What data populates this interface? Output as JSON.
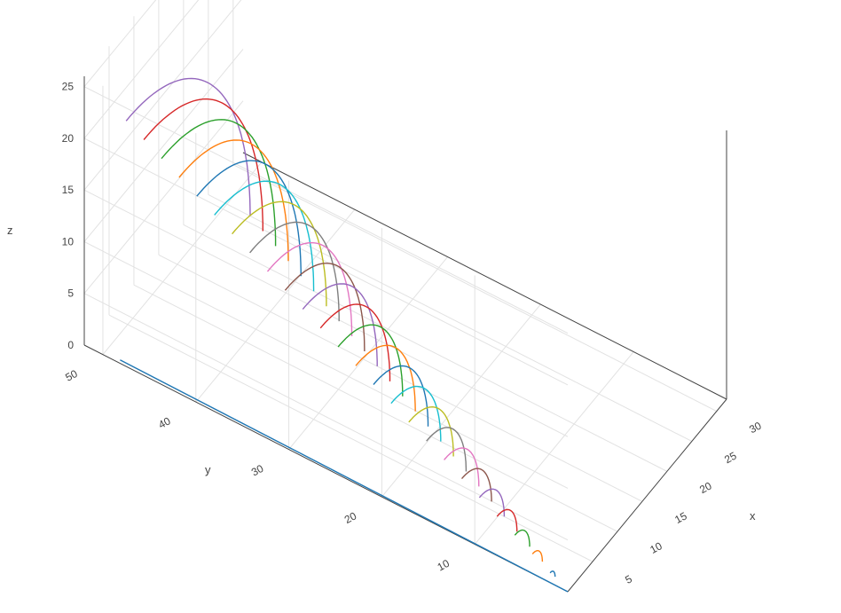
{
  "chart_data": {
    "type": "line",
    "subtype": "3d-scatter-lines",
    "title": "",
    "axes": {
      "x": {
        "label": "x",
        "range": [
          0,
          32
        ],
        "ticks": [
          5,
          10,
          15,
          20,
          25,
          30
        ]
      },
      "y": {
        "label": "y",
        "range": [
          0,
          52
        ],
        "ticks": [
          10,
          20,
          30,
          40,
          50
        ]
      },
      "z": {
        "label": "z",
        "range": [
          0,
          26
        ],
        "ticks": [
          0,
          5,
          10,
          15,
          20,
          25
        ]
      }
    },
    "grid": true,
    "legend": "none",
    "series_description": "Each series is a half circle x = r·cos(t), z = r·sin(t) for t in [0, π/2] lying in the plane y = r, for radii r = 1 … 25; plus a diagonal line along z = 0 from (0,0,0) to (~27,~50,0).",
    "radii": [
      1,
      2,
      3,
      4,
      5,
      6,
      7,
      8,
      9,
      10,
      11,
      12,
      13,
      14,
      15,
      16,
      17,
      18,
      19,
      20,
      21,
      22,
      23,
      24,
      25
    ],
    "colors": [
      "#1f77b4",
      "#ff7f0e",
      "#2ca02c",
      "#d62728",
      "#9467bd",
      "#8c564b",
      "#e377c2",
      "#7f7f7f",
      "#bcbd22",
      "#17becf"
    ]
  }
}
